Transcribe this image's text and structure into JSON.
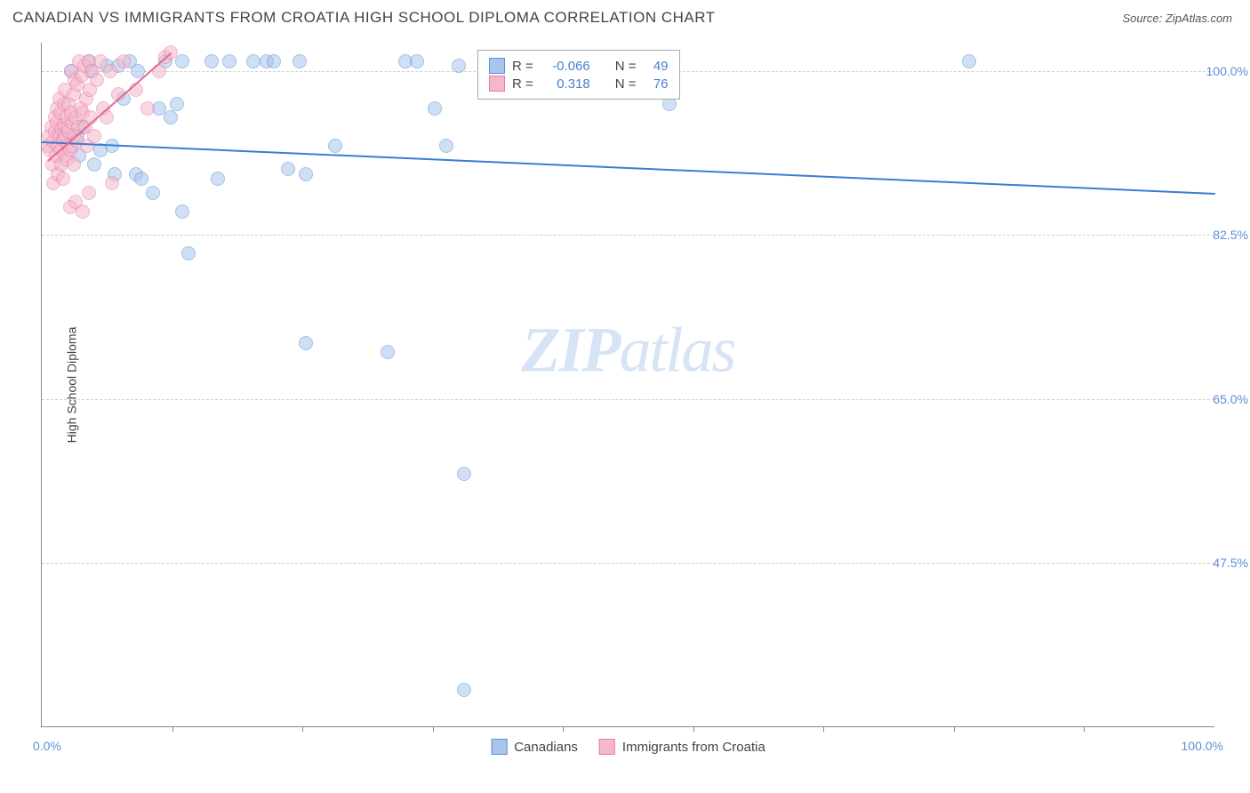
{
  "title": "CANADIAN VS IMMIGRANTS FROM CROATIA HIGH SCHOOL DIPLOMA CORRELATION CHART",
  "source": "Source: ZipAtlas.com",
  "yaxis_title": "High School Diploma",
  "watermark": "ZIPatlas",
  "chart": {
    "type": "scatter",
    "xlim": [
      0,
      100
    ],
    "ylim": [
      30,
      103
    ],
    "ytick_values": [
      47.5,
      65.0,
      82.5,
      100.0
    ],
    "ytick_labels": [
      "47.5%",
      "65.0%",
      "82.5%",
      "100.0%"
    ],
    "xtick_values": [
      11.1,
      22.2,
      33.3,
      44.4,
      55.5,
      66.6,
      77.7,
      88.8
    ],
    "xlabel_0": "0.0%",
    "xlabel_100": "100.0%",
    "background_color": "#ffffff",
    "grid_color": "#d0d0d0",
    "marker_radius": 8,
    "marker_opacity": 0.55,
    "series": [
      {
        "name": "Canadians",
        "label": "Canadians",
        "color_fill": "#a8c5ec",
        "color_stroke": "#5b8fd6",
        "R": "-0.066",
        "N": "49",
        "trend": {
          "x1": 0,
          "y1": 92.5,
          "x2": 100,
          "y2": 87.0,
          "color": "#3b7cd4",
          "width": 2
        },
        "points": [
          [
            2.0,
            92.5
          ],
          [
            2.5,
            100.0
          ],
          [
            3.0,
            93.0
          ],
          [
            3.2,
            91.0
          ],
          [
            3.5,
            94.0
          ],
          [
            4.0,
            101.0
          ],
          [
            4.2,
            100.0
          ],
          [
            4.5,
            90.0
          ],
          [
            5.0,
            91.5
          ],
          [
            5.5,
            100.5
          ],
          [
            6.0,
            92.0
          ],
          [
            6.2,
            89.0
          ],
          [
            6.5,
            100.5
          ],
          [
            7.0,
            97.0
          ],
          [
            7.5,
            101.0
          ],
          [
            8.0,
            89.0
          ],
          [
            8.2,
            100.0
          ],
          [
            8.5,
            88.5
          ],
          [
            9.5,
            87.0
          ],
          [
            10.0,
            96.0
          ],
          [
            10.5,
            101.0
          ],
          [
            11.0,
            95.0
          ],
          [
            11.5,
            96.5
          ],
          [
            12.0,
            85.0
          ],
          [
            12.0,
            101.0
          ],
          [
            12.5,
            80.5
          ],
          [
            14.5,
            101.0
          ],
          [
            15.0,
            88.5
          ],
          [
            16.0,
            101.0
          ],
          [
            18.0,
            101.0
          ],
          [
            19.2,
            101.0
          ],
          [
            19.8,
            101.0
          ],
          [
            21.0,
            89.5
          ],
          [
            22.5,
            89.0
          ],
          [
            22.0,
            101.0
          ],
          [
            22.5,
            71.0
          ],
          [
            25.0,
            92.0
          ],
          [
            31.0,
            101.0
          ],
          [
            29.5,
            70.0
          ],
          [
            32.0,
            101.0
          ],
          [
            33.5,
            96.0
          ],
          [
            34.5,
            92.0
          ],
          [
            35.5,
            100.5
          ],
          [
            36.0,
            34.0
          ],
          [
            36.0,
            57.0
          ],
          [
            40.5,
            101.0
          ],
          [
            53.0,
            101.0
          ],
          [
            53.5,
            96.5
          ],
          [
            79.0,
            101.0
          ]
        ]
      },
      {
        "name": "ImmigrantsCroatia",
        "label": "Immigrants from Croatia",
        "color_fill": "#f5b8cb",
        "color_stroke": "#e87ba2",
        "R": "0.318",
        "N": "76",
        "trend": {
          "x1": 0.5,
          "y1": 90.5,
          "x2": 11.0,
          "y2": 102.0,
          "color": "#e46a94",
          "width": 2
        },
        "points": [
          [
            0.5,
            92.0
          ],
          [
            0.6,
            93.0
          ],
          [
            0.7,
            91.5
          ],
          [
            0.8,
            94.0
          ],
          [
            0.9,
            90.0
          ],
          [
            1.0,
            92.5
          ],
          [
            1.0,
            88.0
          ],
          [
            1.1,
            95.0
          ],
          [
            1.1,
            93.5
          ],
          [
            1.2,
            91.0
          ],
          [
            1.3,
            94.5
          ],
          [
            1.3,
            96.0
          ],
          [
            1.4,
            92.0
          ],
          [
            1.4,
            89.0
          ],
          [
            1.5,
            93.0
          ],
          [
            1.5,
            97.0
          ],
          [
            1.6,
            91.5
          ],
          [
            1.6,
            95.5
          ],
          [
            1.7,
            90.0
          ],
          [
            1.7,
            93.8
          ],
          [
            1.8,
            92.7
          ],
          [
            1.8,
            88.5
          ],
          [
            1.9,
            94.2
          ],
          [
            1.9,
            96.5
          ],
          [
            2.0,
            91.0
          ],
          [
            2.0,
            93.0
          ],
          [
            2.0,
            98.0
          ],
          [
            2.1,
            95.0
          ],
          [
            2.1,
            90.5
          ],
          [
            2.2,
            94.0
          ],
          [
            2.2,
            92.0
          ],
          [
            2.3,
            96.5
          ],
          [
            2.3,
            93.5
          ],
          [
            2.4,
            91.5
          ],
          [
            2.4,
            85.5
          ],
          [
            2.5,
            95.5
          ],
          [
            2.5,
            100.0
          ],
          [
            2.6,
            94.5
          ],
          [
            2.6,
            92.0
          ],
          [
            2.7,
            97.5
          ],
          [
            2.7,
            90.0
          ],
          [
            2.8,
            93.0
          ],
          [
            2.8,
            99.0
          ],
          [
            2.9,
            95.0
          ],
          [
            2.9,
            86.0
          ],
          [
            3.0,
            92.5
          ],
          [
            3.0,
            98.5
          ],
          [
            3.1,
            94.0
          ],
          [
            3.2,
            101.0
          ],
          [
            3.3,
            96.0
          ],
          [
            3.4,
            99.5
          ],
          [
            3.5,
            95.5
          ],
          [
            3.5,
            85.0
          ],
          [
            3.6,
            100.5
          ],
          [
            3.7,
            94.0
          ],
          [
            3.8,
            97.0
          ],
          [
            3.9,
            92.0
          ],
          [
            4.0,
            101.0
          ],
          [
            4.1,
            98.0
          ],
          [
            4.2,
            95.0
          ],
          [
            4.3,
            100.0
          ],
          [
            4.5,
            93.0
          ],
          [
            4.7,
            99.0
          ],
          [
            5.0,
            101.0
          ],
          [
            5.2,
            96.0
          ],
          [
            5.5,
            95.0
          ],
          [
            5.8,
            100.0
          ],
          [
            6.0,
            88.0
          ],
          [
            6.5,
            97.5
          ],
          [
            7.0,
            101.0
          ],
          [
            8.0,
            98.0
          ],
          [
            9.0,
            96.0
          ],
          [
            10.0,
            100.0
          ],
          [
            10.5,
            101.5
          ],
          [
            11.0,
            102.0
          ],
          [
            4.0,
            87.0
          ]
        ]
      }
    ]
  },
  "legend_stats": {
    "prefix_R": "R =",
    "prefix_N": "N ="
  }
}
